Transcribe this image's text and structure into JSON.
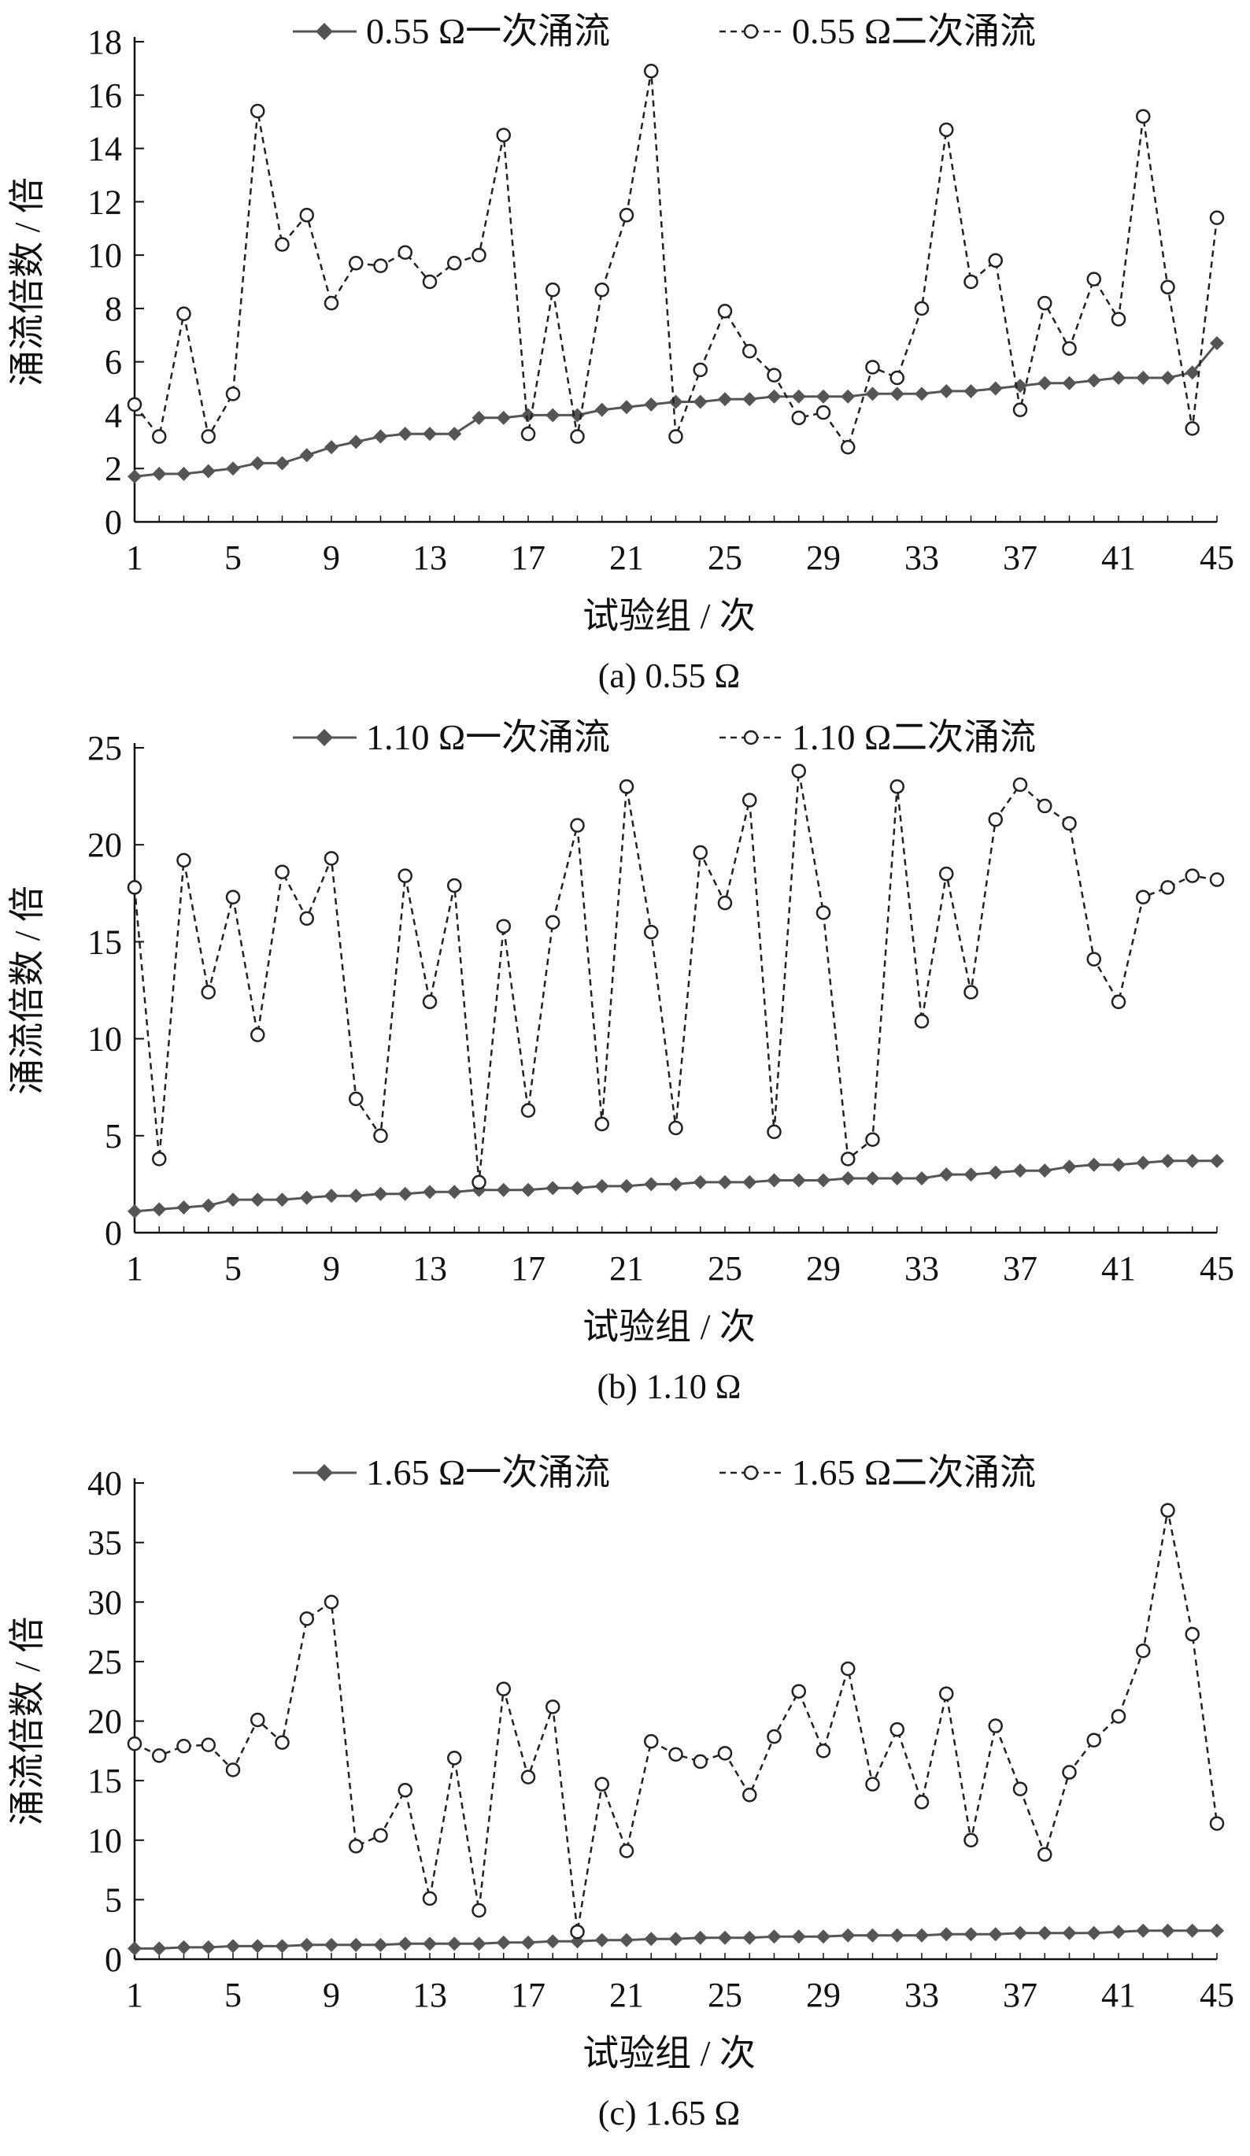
{
  "chart_data": [
    {
      "type": "line",
      "caption": "(a)  0.55 Ω",
      "xlabel": "试验组 / 次",
      "ylabel": "涌流倍数 / 倍",
      "ylim": [
        0,
        18
      ],
      "yticks": [
        0,
        2,
        4,
        6,
        8,
        10,
        12,
        14,
        16,
        18
      ],
      "xlim": [
        1,
        45
      ],
      "xticks": [
        1,
        5,
        9,
        13,
        17,
        21,
        25,
        29,
        33,
        37,
        41,
        45
      ],
      "grid": false,
      "legend_position": "top",
      "x": [
        1,
        2,
        3,
        4,
        5,
        6,
        7,
        8,
        9,
        10,
        11,
        12,
        13,
        14,
        15,
        16,
        17,
        18,
        19,
        20,
        21,
        22,
        23,
        24,
        25,
        26,
        27,
        28,
        29,
        30,
        31,
        32,
        33,
        34,
        35,
        36,
        37,
        38,
        39,
        40,
        41,
        42,
        43,
        44,
        45
      ],
      "series": [
        {
          "name": "0.55  Ω一次涌流",
          "style": "solid-diamond",
          "color": "#555555",
          "values": [
            1.7,
            1.8,
            1.8,
            1.9,
            2.0,
            2.2,
            2.2,
            2.5,
            2.8,
            3.0,
            3.2,
            3.3,
            3.3,
            3.3,
            3.9,
            3.9,
            4.0,
            4.0,
            4.0,
            4.2,
            4.3,
            4.4,
            4.5,
            4.5,
            4.6,
            4.6,
            4.7,
            4.7,
            4.7,
            4.7,
            4.8,
            4.8,
            4.8,
            4.9,
            4.9,
            5.0,
            5.1,
            5.2,
            5.2,
            5.3,
            5.4,
            5.4,
            5.4,
            5.6,
            6.7
          ]
        },
        {
          "name": "0.55  Ω二次涌流",
          "style": "dashed-circle",
          "color": "#222222",
          "values": [
            4.4,
            3.2,
            7.8,
            3.2,
            4.8,
            15.4,
            10.4,
            11.5,
            8.2,
            9.7,
            9.6,
            10.1,
            9.0,
            9.7,
            10.0,
            14.5,
            3.3,
            8.7,
            3.2,
            8.7,
            11.5,
            16.9,
            3.2,
            5.7,
            7.9,
            6.4,
            5.5,
            3.9,
            4.1,
            2.8,
            5.8,
            5.4,
            8.0,
            14.7,
            9.0,
            9.8,
            4.2,
            8.2,
            6.5,
            9.1,
            7.6,
            15.2,
            8.8,
            3.5,
            11.4
          ]
        }
      ]
    },
    {
      "type": "line",
      "caption": "(b)  1.10  Ω",
      "xlabel": "试验组 / 次",
      "ylabel": "涌流倍数 / 倍",
      "ylim": [
        0,
        25
      ],
      "yticks": [
        0,
        5,
        10,
        15,
        20,
        25
      ],
      "xlim": [
        1,
        45
      ],
      "xticks": [
        1,
        5,
        9,
        13,
        17,
        21,
        25,
        29,
        33,
        37,
        41,
        45
      ],
      "grid": false,
      "legend_position": "top",
      "x": [
        1,
        2,
        3,
        4,
        5,
        6,
        7,
        8,
        9,
        10,
        11,
        12,
        13,
        14,
        15,
        16,
        17,
        18,
        19,
        20,
        21,
        22,
        23,
        24,
        25,
        26,
        27,
        28,
        29,
        30,
        31,
        32,
        33,
        34,
        35,
        36,
        37,
        38,
        39,
        40,
        41,
        42,
        43,
        44,
        45
      ],
      "series": [
        {
          "name": "1.10  Ω一次涌流",
          "style": "solid-diamond",
          "color": "#555555",
          "values": [
            1.1,
            1.2,
            1.3,
            1.4,
            1.7,
            1.7,
            1.7,
            1.8,
            1.9,
            1.9,
            2.0,
            2.0,
            2.1,
            2.1,
            2.2,
            2.2,
            2.2,
            2.3,
            2.3,
            2.4,
            2.4,
            2.5,
            2.5,
            2.6,
            2.6,
            2.6,
            2.7,
            2.7,
            2.7,
            2.8,
            2.8,
            2.8,
            2.8,
            3.0,
            3.0,
            3.1,
            3.2,
            3.2,
            3.4,
            3.5,
            3.5,
            3.6,
            3.7,
            3.7,
            3.7
          ]
        },
        {
          "name": "1.10  Ω二次涌流",
          "style": "dashed-circle",
          "color": "#222222",
          "values": [
            17.8,
            3.8,
            19.2,
            12.4,
            17.3,
            10.2,
            18.6,
            16.2,
            19.3,
            6.9,
            5.0,
            18.4,
            11.9,
            17.9,
            2.6,
            15.8,
            6.3,
            16.0,
            21.0,
            5.6,
            23.0,
            15.5,
            5.4,
            19.6,
            17.0,
            22.3,
            5.2,
            23.8,
            16.5,
            3.8,
            4.8,
            23.0,
            10.9,
            18.5,
            12.4,
            21.3,
            23.1,
            22.0,
            21.1,
            14.1,
            11.9,
            17.3,
            17.8,
            18.4,
            18.2
          ]
        }
      ]
    },
    {
      "type": "line",
      "caption": "(c)  1.65 Ω",
      "xlabel": "试验组 / 次",
      "ylabel": "涌流倍数 / 倍",
      "ylim": [
        0,
        40
      ],
      "yticks": [
        0,
        5,
        10,
        15,
        20,
        25,
        30,
        35,
        40
      ],
      "xlim": [
        1,
        45
      ],
      "xticks": [
        1,
        5,
        9,
        13,
        17,
        21,
        25,
        29,
        33,
        37,
        41,
        45
      ],
      "grid": false,
      "legend_position": "top",
      "x": [
        1,
        2,
        3,
        4,
        5,
        6,
        7,
        8,
        9,
        10,
        11,
        12,
        13,
        14,
        15,
        16,
        17,
        18,
        19,
        20,
        21,
        22,
        23,
        24,
        25,
        26,
        27,
        28,
        29,
        30,
        31,
        32,
        33,
        34,
        35,
        36,
        37,
        38,
        39,
        40,
        41,
        42,
        43,
        44,
        45
      ],
      "series": [
        {
          "name": "1.65  Ω一次涌流",
          "style": "solid-diamond",
          "color": "#555555",
          "values": [
            0.9,
            0.9,
            1.0,
            1.0,
            1.1,
            1.1,
            1.1,
            1.2,
            1.2,
            1.2,
            1.2,
            1.3,
            1.3,
            1.3,
            1.3,
            1.4,
            1.4,
            1.5,
            1.5,
            1.6,
            1.6,
            1.7,
            1.7,
            1.8,
            1.8,
            1.8,
            1.9,
            1.9,
            1.9,
            2.0,
            2.0,
            2.0,
            2.0,
            2.1,
            2.1,
            2.1,
            2.2,
            2.2,
            2.2,
            2.2,
            2.3,
            2.4,
            2.4,
            2.4,
            2.4
          ]
        },
        {
          "name": "1.65  Ω二次涌流",
          "style": "dashed-circle",
          "color": "#222222",
          "values": [
            18.1,
            17.1,
            17.9,
            18.0,
            15.9,
            20.1,
            18.2,
            28.6,
            30.0,
            9.5,
            10.4,
            14.2,
            5.1,
            16.9,
            4.1,
            22.7,
            15.3,
            21.2,
            2.3,
            14.7,
            9.1,
            18.3,
            17.2,
            16.6,
            17.3,
            13.8,
            18.7,
            22.5,
            17.5,
            24.4,
            14.7,
            19.3,
            13.2,
            22.3,
            10.0,
            19.6,
            14.3,
            8.8,
            15.7,
            18.4,
            20.4,
            25.9,
            37.7,
            27.3,
            11.4
          ]
        }
      ]
    }
  ]
}
